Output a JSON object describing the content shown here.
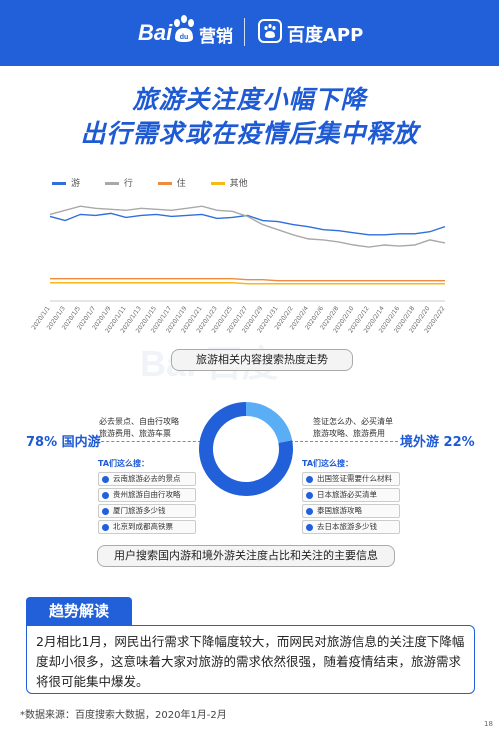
{
  "header": {
    "brand_left": "Bai",
    "brand_left_cn": "营销",
    "brand_right": "百度APP"
  },
  "title": {
    "line1": "旅游关注度小幅下降",
    "line2": "出行需求或在疫情后集中释放"
  },
  "colors": {
    "primary": "#2160d8",
    "you": "#2f6fdd",
    "xing": "#a9a9a9",
    "zhu": "#f08a3c",
    "qita": "#f5b91a"
  },
  "chart_data": [
    {
      "type": "line",
      "title": "",
      "xlabel": "",
      "ylabel": "",
      "legend_position": "top-left",
      "grid": false,
      "x": [
        "2020/1/1",
        "2020/1/3",
        "2020/1/5",
        "2020/1/7",
        "2020/1/9",
        "2020/1/11",
        "2020/1/13",
        "2020/1/15",
        "2020/1/17",
        "2020/1/19",
        "2020/1/21",
        "2020/1/23",
        "2020/1/25",
        "2020/1/27",
        "2020/1/29",
        "2020/1/31",
        "2020/2/2",
        "2020/2/4",
        "2020/2/6",
        "2020/2/8",
        "2020/2/10",
        "2020/2/12",
        "2020/2/14",
        "2020/2/16",
        "2020/2/18",
        "2020/2/20",
        "2020/2/22"
      ],
      "ylim": [
        0,
        100
      ],
      "series": [
        {
          "name": "游",
          "color": "#2f6fdd",
          "values": [
            78,
            74,
            80,
            79,
            81,
            77,
            79,
            80,
            78,
            79,
            80,
            76,
            77,
            79,
            74,
            73,
            70,
            68,
            65,
            64,
            62,
            60,
            60,
            61,
            61,
            63,
            68
          ]
        },
        {
          "name": "行",
          "color": "#a9a9a9",
          "values": [
            80,
            84,
            88,
            86,
            85,
            84,
            86,
            85,
            84,
            86,
            88,
            84,
            83,
            78,
            70,
            65,
            60,
            56,
            55,
            53,
            50,
            48,
            50,
            49,
            50,
            55,
            52
          ]
        },
        {
          "name": "住",
          "color": "#f08a3c",
          "values": [
            17,
            17,
            17,
            17,
            17,
            17,
            17,
            17,
            17,
            17,
            17,
            17,
            17,
            16,
            16,
            15,
            15,
            15,
            15,
            15,
            15,
            15,
            15,
            15,
            15,
            15,
            15
          ]
        },
        {
          "name": "其他",
          "color": "#f5b91a",
          "values": [
            13,
            13,
            13,
            13,
            13,
            13,
            13,
            13,
            13,
            13,
            13,
            13,
            13,
            12,
            12,
            12,
            12,
            12,
            12,
            12,
            12,
            12,
            12,
            12,
            12,
            12,
            12
          ]
        }
      ]
    },
    {
      "type": "pie",
      "title": "",
      "slices": [
        {
          "label": "国内游",
          "value": 78,
          "color": "#2160d8"
        },
        {
          "label": "境外游",
          "value": 22,
          "color": "#5aaef5"
        }
      ]
    }
  ],
  "caption1": "旅游相关内容搜索热度走势",
  "domestic": {
    "label": "78% 国内游",
    "keywords_line1": "必去景点、自由行攻略",
    "keywords_line2": "旅游费用、旅游车票",
    "ta_title": "TA们这么搜：",
    "ta_items": [
      "云南旅游必去的景点",
      "贵州旅游自由行攻略",
      "厦门旅游多少钱",
      "北京到成都高铁票"
    ]
  },
  "abroad": {
    "label": "境外游 22%",
    "keywords_line1": "签证怎么办、必买清单",
    "keywords_line2": "旅游攻略、旅游费用",
    "ta_title": "TA们这么搜：",
    "ta_items": [
      "出国签证需要什么材料",
      "日本旅游必买清单",
      "泰国旅游攻略",
      "去日本旅游多少钱"
    ]
  },
  "caption2": "用户搜索国内游和境外游关注度占比和关注的主要信息",
  "trend": {
    "tag": "趋势解读",
    "text": "2月相比1月，网民出行需求下降幅度较大，而网民对旅游信息的关注度下降幅度却小很多，这意味着大家对旅游的需求依然很强，随着疫情结束，旅游需求将很可能集中爆发。"
  },
  "source": "*数据来源：百度搜索大数据，2020年1月-2月",
  "page_number": "18",
  "watermark": "Bai"
}
